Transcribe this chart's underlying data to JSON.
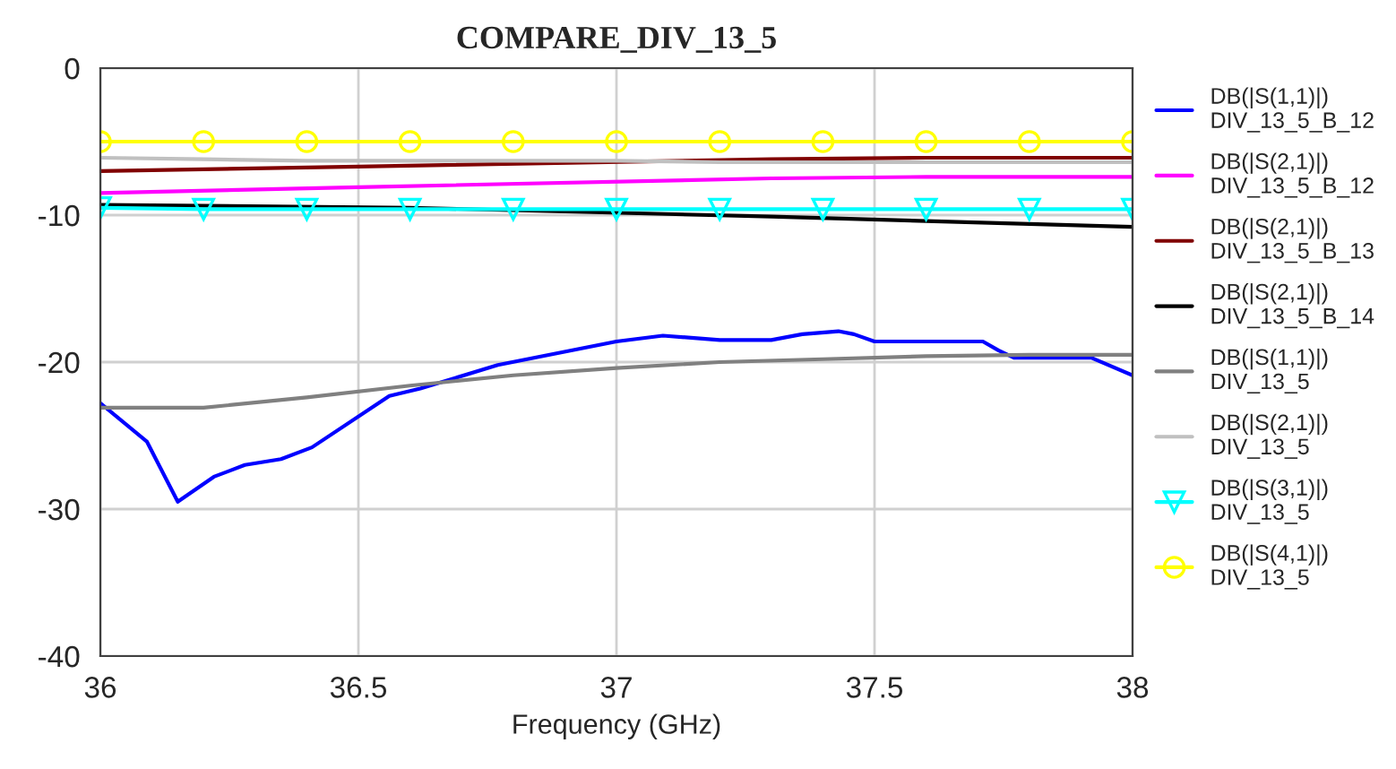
{
  "chart_data": {
    "type": "line",
    "title": "COMPARE_DIV_13_5",
    "xlabel": "Frequency (GHz)",
    "xlim": [
      36,
      38
    ],
    "xticks": [
      36,
      36.5,
      37,
      37.5,
      38
    ],
    "ylim": [
      -40,
      0
    ],
    "yticks": [
      -40,
      -30,
      -20,
      -10,
      0
    ],
    "grid": true,
    "legend": "right",
    "series": [
      {
        "name": "DB(|S(1,1)|)\nDIV_13_5_B_12",
        "color": "#0000ff",
        "x": [
          36,
          36.09,
          36.15,
          36.22,
          36.28,
          36.35,
          36.41,
          36.56,
          36.62,
          36.77,
          37.0,
          37.09,
          37.2,
          37.3,
          37.36,
          37.43,
          37.46,
          37.5,
          37.55,
          37.6,
          37.65,
          37.71,
          37.74,
          37.77,
          37.85,
          37.92,
          38
        ],
        "values": [
          -22.8,
          -25.4,
          -29.5,
          -27.8,
          -27.0,
          -26.6,
          -25.8,
          -22.3,
          -21.8,
          -20.2,
          -18.6,
          -18.2,
          -18.5,
          -18.5,
          -18.1,
          -17.9,
          -18.1,
          -18.6,
          -18.6,
          -18.6,
          -18.6,
          -18.6,
          -19.2,
          -19.7,
          -19.7,
          -19.7,
          -20.9
        ]
      },
      {
        "name": "DB(|S(2,1)|)\nDIV_13_5_B_12",
        "color": "#ff00ff",
        "x": [
          36,
          36.5,
          37.3,
          37.6,
          38
        ],
        "values": [
          -8.5,
          -8.1,
          -7.5,
          -7.4,
          -7.4
        ]
      },
      {
        "name": "DB(|S(2,1)|)\nDIV_13_5_B_13",
        "color": "#800000",
        "x": [
          36,
          36.5,
          37.3,
          37.6,
          38
        ],
        "values": [
          -7.0,
          -6.7,
          -6.2,
          -6.1,
          -6.1
        ]
      },
      {
        "name": "DB(|S(2,1)|)\nDIV_13_5_B_14",
        "color": "#000000",
        "x": [
          36,
          36.6,
          37.3,
          37.6,
          38
        ],
        "values": [
          -9.3,
          -9.5,
          -10.1,
          -10.4,
          -10.8
        ]
      },
      {
        "name": "DB(|S(1,1)|)\nDIV_13_5",
        "color": "#808080",
        "x": [
          36,
          36.2,
          36.4,
          36.6,
          36.8,
          37,
          37.2,
          37.4,
          37.6,
          37.8,
          38
        ],
        "values": [
          -23.1,
          -23.1,
          -22.4,
          -21.6,
          -20.9,
          -20.4,
          -20.0,
          -19.8,
          -19.6,
          -19.5,
          -19.5
        ]
      },
      {
        "name": "DB(|S(2,1)|)\nDIV_13_5",
        "color": "#c0c0c0",
        "x": [
          36,
          36.2,
          36.4,
          36.6,
          36.8,
          37,
          37.2,
          37.4,
          37.6,
          37.8,
          38
        ],
        "values": [
          -6.1,
          -6.2,
          -6.3,
          -6.3,
          -6.3,
          -6.3,
          -6.4,
          -6.4,
          -6.4,
          -6.4,
          -6.4
        ]
      },
      {
        "name": "DB(|S(3,1)|)\nDIV_13_5",
        "color": "#00ffff",
        "marker": "triangle_down",
        "x": [
          36,
          36.2,
          36.4,
          36.6,
          36.8,
          37,
          37.2,
          37.4,
          37.6,
          37.8,
          38
        ],
        "values": [
          -9.5,
          -9.6,
          -9.6,
          -9.6,
          -9.6,
          -9.6,
          -9.6,
          -9.6,
          -9.6,
          -9.6,
          -9.6
        ]
      },
      {
        "name": "DB(|S(4,1)|)\nDIV_13_5",
        "color": "#ffff00",
        "marker": "circle",
        "x": [
          36,
          36.2,
          36.4,
          36.6,
          36.8,
          37,
          37.2,
          37.4,
          37.6,
          37.8,
          38
        ],
        "values": [
          -5.0,
          -5.0,
          -5.0,
          -5.0,
          -5.0,
          -5.0,
          -5.0,
          -5.0,
          -5.0,
          -5.0,
          -5.0
        ]
      }
    ]
  }
}
